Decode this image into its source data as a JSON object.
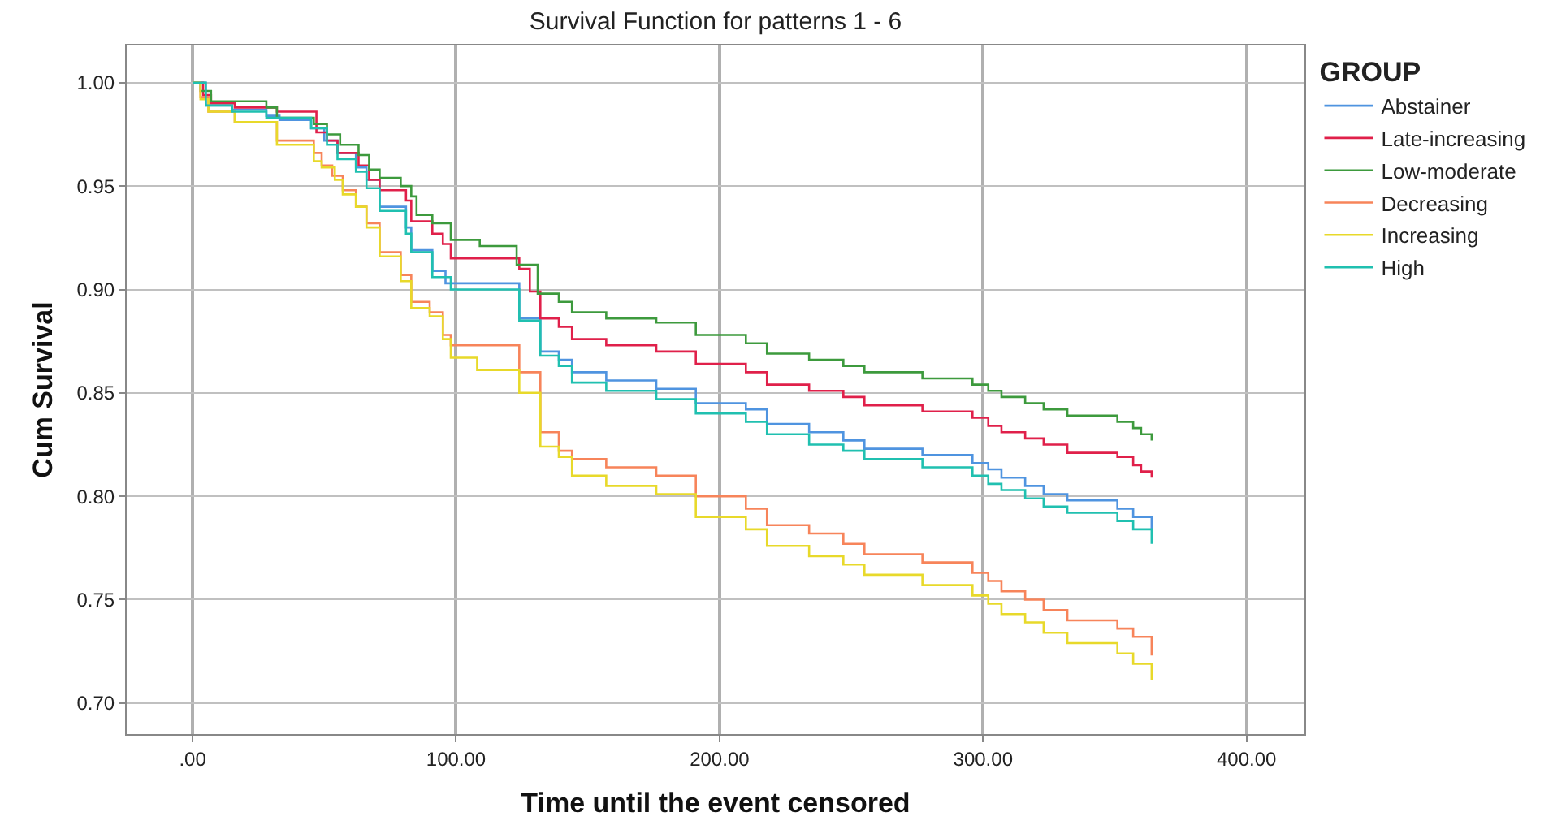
{
  "chart_data": {
    "type": "step",
    "title": "Survival Function for patterns 1 - 6",
    "xlabel": "Time until the event censored",
    "ylabel": "Cum Survival",
    "legend_title": "GROUP",
    "legend": "right",
    "grid": true,
    "line_style": "solid",
    "marker": "none",
    "xlim": [
      -25,
      422
    ],
    "xticks": [
      {
        "value": 0,
        "label": ".00"
      },
      {
        "value": 100,
        "label": "100.00"
      },
      {
        "value": 200,
        "label": "200.00"
      },
      {
        "value": 300,
        "label": "300.00"
      },
      {
        "value": 400,
        "label": "400.00"
      }
    ],
    "ylim": [
      0.685,
      1.018
    ],
    "yticks": [
      {
        "value": 0.7,
        "label": "0.70"
      },
      {
        "value": 0.75,
        "label": "0.75"
      },
      {
        "value": 0.8,
        "label": "0.80"
      },
      {
        "value": 0.85,
        "label": "0.85"
      },
      {
        "value": 0.9,
        "label": "0.90"
      },
      {
        "value": 0.95,
        "label": "0.95"
      },
      {
        "value": 1,
        "label": "1.00"
      }
    ],
    "series": [
      {
        "name": "Abstainer",
        "color": "#4f94e0",
        "x": [
          0,
          5,
          15,
          28,
          33,
          45,
          50,
          55,
          62,
          66,
          71,
          81,
          83,
          91,
          96,
          124,
          132,
          139,
          144,
          157,
          176,
          191,
          210,
          218,
          234,
          247,
          255,
          277,
          296,
          302,
          307,
          316,
          323,
          332,
          351,
          357,
          364
        ],
        "values": [
          1.0,
          0.989,
          0.987,
          0.984,
          0.982,
          0.978,
          0.972,
          0.966,
          0.959,
          0.953,
          0.94,
          0.93,
          0.919,
          0.909,
          0.903,
          0.886,
          0.87,
          0.866,
          0.86,
          0.856,
          0.852,
          0.845,
          0.842,
          0.835,
          0.831,
          0.827,
          0.823,
          0.82,
          0.816,
          0.813,
          0.809,
          0.805,
          0.801,
          0.798,
          0.794,
          0.79,
          0.784
        ]
      },
      {
        "name": "Late-increasing",
        "color": "#e0204a",
        "x": [
          0,
          4,
          7,
          16,
          32,
          47,
          51,
          55,
          63,
          67,
          71,
          81,
          83,
          91,
          95,
          98,
          124,
          128,
          132,
          139,
          144,
          157,
          176,
          191,
          210,
          218,
          234,
          247,
          255,
          277,
          296,
          302,
          307,
          316,
          323,
          332,
          351,
          357,
          360,
          364
        ],
        "values": [
          1.0,
          0.994,
          0.99,
          0.988,
          0.986,
          0.976,
          0.972,
          0.966,
          0.96,
          0.953,
          0.948,
          0.943,
          0.933,
          0.927,
          0.922,
          0.915,
          0.91,
          0.899,
          0.886,
          0.882,
          0.876,
          0.873,
          0.87,
          0.864,
          0.86,
          0.854,
          0.851,
          0.848,
          0.844,
          0.841,
          0.838,
          0.834,
          0.831,
          0.828,
          0.825,
          0.821,
          0.819,
          0.815,
          0.812,
          0.809
        ]
      },
      {
        "name": "Low-moderate",
        "color": "#3d9a3d",
        "x": [
          0,
          3,
          7,
          28,
          32,
          46,
          51,
          56,
          63,
          67,
          71,
          79,
          83,
          85,
          91,
          98,
          109,
          123,
          131,
          139,
          144,
          157,
          176,
          191,
          210,
          218,
          234,
          247,
          255,
          277,
          296,
          302,
          307,
          316,
          323,
          332,
          351,
          357,
          360,
          364
        ],
        "values": [
          1.0,
          0.996,
          0.991,
          0.988,
          0.983,
          0.98,
          0.975,
          0.97,
          0.965,
          0.958,
          0.954,
          0.95,
          0.945,
          0.936,
          0.932,
          0.924,
          0.921,
          0.912,
          0.898,
          0.894,
          0.889,
          0.886,
          0.884,
          0.878,
          0.874,
          0.869,
          0.866,
          0.863,
          0.86,
          0.857,
          0.854,
          0.851,
          0.848,
          0.845,
          0.842,
          0.839,
          0.836,
          0.833,
          0.83,
          0.827
        ]
      },
      {
        "name": "Decreasing",
        "color": "#f7845a",
        "x": [
          0,
          3,
          6,
          16,
          32,
          46,
          49,
          53,
          57,
          62,
          66,
          71,
          79,
          83,
          90,
          95,
          98,
          124,
          132,
          139,
          144,
          157,
          176,
          191,
          210,
          218,
          234,
          247,
          255,
          277,
          296,
          302,
          307,
          316,
          323,
          332,
          351,
          357,
          364
        ],
        "values": [
          1.0,
          0.993,
          0.986,
          0.981,
          0.972,
          0.966,
          0.96,
          0.955,
          0.948,
          0.94,
          0.932,
          0.918,
          0.907,
          0.894,
          0.889,
          0.878,
          0.873,
          0.86,
          0.831,
          0.822,
          0.818,
          0.814,
          0.81,
          0.8,
          0.794,
          0.786,
          0.782,
          0.777,
          0.772,
          0.768,
          0.763,
          0.759,
          0.754,
          0.75,
          0.745,
          0.74,
          0.736,
          0.732,
          0.723
        ]
      },
      {
        "name": "Increasing",
        "color": "#e8d92a",
        "x": [
          0,
          3,
          6,
          16,
          32,
          46,
          49,
          54,
          57,
          62,
          66,
          71,
          79,
          83,
          90,
          95,
          98,
          108,
          124,
          132,
          139,
          144,
          157,
          176,
          191,
          210,
          218,
          234,
          247,
          255,
          277,
          296,
          302,
          307,
          316,
          323,
          332,
          351,
          357,
          364
        ],
        "values": [
          1.0,
          0.992,
          0.986,
          0.981,
          0.97,
          0.962,
          0.959,
          0.953,
          0.946,
          0.94,
          0.93,
          0.916,
          0.904,
          0.891,
          0.887,
          0.876,
          0.867,
          0.861,
          0.85,
          0.824,
          0.819,
          0.81,
          0.805,
          0.801,
          0.79,
          0.784,
          0.776,
          0.771,
          0.767,
          0.762,
          0.757,
          0.752,
          0.748,
          0.743,
          0.739,
          0.734,
          0.729,
          0.724,
          0.719,
          0.711
        ]
      },
      {
        "name": "High",
        "color": "#20c0b0",
        "x": [
          0,
          5,
          15,
          28,
          45,
          51,
          55,
          62,
          66,
          71,
          81,
          83,
          91,
          98,
          124,
          132,
          139,
          144,
          157,
          176,
          191,
          210,
          218,
          234,
          247,
          255,
          277,
          296,
          302,
          307,
          316,
          323,
          332,
          351,
          357,
          364
        ],
        "values": [
          1.0,
          0.989,
          0.986,
          0.983,
          0.978,
          0.97,
          0.963,
          0.957,
          0.949,
          0.938,
          0.927,
          0.918,
          0.906,
          0.9,
          0.885,
          0.868,
          0.863,
          0.855,
          0.851,
          0.847,
          0.84,
          0.836,
          0.83,
          0.825,
          0.822,
          0.818,
          0.814,
          0.81,
          0.806,
          0.803,
          0.799,
          0.795,
          0.792,
          0.788,
          0.784,
          0.777
        ]
      }
    ]
  }
}
